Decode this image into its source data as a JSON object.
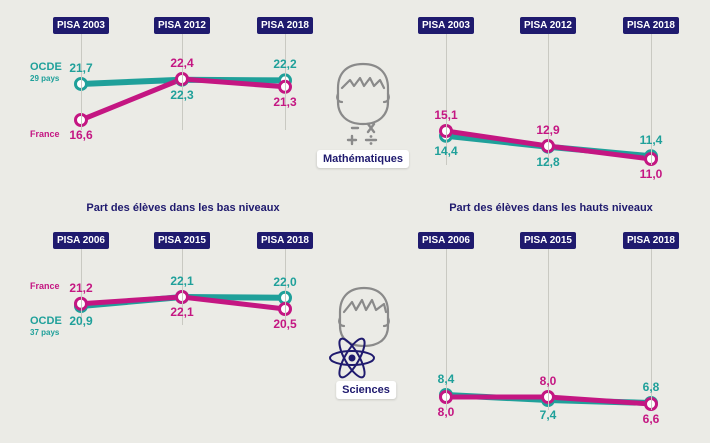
{
  "titles": {
    "low": "Part des élèves dans les bas niveaux",
    "high": "Part des élèves dans les hauts niveaux"
  },
  "badges": {
    "math": "Mathématiques",
    "sci": "Sciences"
  },
  "labels": {
    "ocde": "OCDE",
    "ocde_math_sub": "29 pays",
    "ocde_sci_sub": "37 pays",
    "france": "France"
  },
  "colors": {
    "ocde": "#1fa09a",
    "france": "#c41682",
    "pill": "#1f1a6e"
  },
  "chart_data": [
    {
      "type": "line",
      "panel": "math-low",
      "categories": [
        "PISA 2003",
        "PISA 2012",
        "PISA 2018"
      ],
      "series": [
        {
          "name": "OCDE",
          "values": [
            21.7,
            22.3,
            22.2
          ],
          "labels": [
            "21,7",
            "22,3",
            "22,2"
          ]
        },
        {
          "name": "France",
          "values": [
            16.6,
            22.4,
            21.3
          ],
          "labels": [
            "16,6",
            "22,4",
            "21,3"
          ]
        }
      ]
    },
    {
      "type": "line",
      "panel": "math-high",
      "categories": [
        "PISA 2003",
        "PISA 2012",
        "PISA 2018"
      ],
      "series": [
        {
          "name": "OCDE",
          "values": [
            14.4,
            12.8,
            11.4
          ],
          "labels": [
            "14,4",
            "12,8",
            "11,4"
          ]
        },
        {
          "name": "France",
          "values": [
            15.1,
            12.9,
            11.0
          ],
          "labels": [
            "15,1",
            "12,9",
            "11,0"
          ]
        }
      ]
    },
    {
      "type": "line",
      "panel": "sci-low",
      "categories": [
        "PISA 2006",
        "PISA 2015",
        "PISA 2018"
      ],
      "series": [
        {
          "name": "OCDE",
          "values": [
            20.9,
            22.1,
            22.0
          ],
          "labels": [
            "20,9",
            "22,1",
            "22,0"
          ]
        },
        {
          "name": "France",
          "values": [
            21.2,
            22.1,
            20.5
          ],
          "labels": [
            "21,2",
            "22,1",
            "20,5"
          ]
        }
      ]
    },
    {
      "type": "line",
      "panel": "sci-high",
      "categories": [
        "PISA 2006",
        "PISA 2015",
        "PISA 2018"
      ],
      "series": [
        {
          "name": "OCDE",
          "values": [
            8.4,
            7.4,
            6.8
          ],
          "labels": [
            "8,4",
            "7,4",
            "6,8"
          ]
        },
        {
          "name": "France",
          "values": [
            8.0,
            8.0,
            6.6
          ],
          "labels": [
            "8,0",
            "8,0",
            "6,6"
          ]
        }
      ]
    }
  ]
}
